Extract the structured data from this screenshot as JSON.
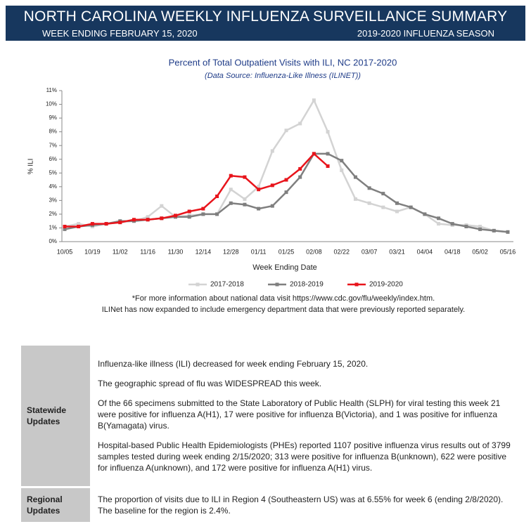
{
  "header": {
    "title": "NORTH CAROLINA WEEKLY INFLUENZA SURVEILLANCE SUMMARY",
    "week": "WEEK ENDING FEBRUARY 15, 2020",
    "season": "2019-2020 INFLUENZA SEASON"
  },
  "chart_data": {
    "type": "line",
    "title": "Percent of Total Outpatient Visits with ILI, NC 2017-2020",
    "subtitle": "(Data Source: Influenza-Like Illness (ILINET))",
    "y_label": "% ILI",
    "x_label": "Week Ending Date",
    "categories": [
      "10/05",
      null,
      "10/19",
      null,
      "11/02",
      null,
      "11/16",
      null,
      "11/30",
      null,
      "12/14",
      null,
      "12/28",
      null,
      "01/11",
      null,
      "01/25",
      null,
      "02/08",
      null,
      "02/22",
      null,
      "03/07",
      null,
      "03/21",
      null,
      "04/04",
      null,
      "04/18",
      null,
      "05/02",
      null,
      "05/16"
    ],
    "ylim": [
      0,
      11
    ],
    "yticks": [
      {
        "value": 0,
        "label": "0%"
      },
      {
        "value": 1,
        "label": "1%"
      },
      {
        "value": 2,
        "label": "2%"
      },
      {
        "value": 3,
        "label": "3%"
      },
      {
        "value": 4,
        "label": "4%"
      },
      {
        "value": 5,
        "label": "5%"
      },
      {
        "value": 6,
        "label": "6%"
      },
      {
        "value": 7,
        "label": "7%"
      },
      {
        "value": 8,
        "label": "8%"
      },
      {
        "value": 9,
        "label": "9%"
      },
      {
        "value": 10,
        "label": "10%"
      },
      {
        "value": 11,
        "label": "11%"
      }
    ],
    "legend": "bottom",
    "series": [
      {
        "name": "2017-2018",
        "color": "#d3d3d3",
        "values": [
          1.1,
          1.3,
          1.1,
          1.3,
          1.4,
          1.5,
          1.8,
          2.6,
          1.8,
          1.9,
          2.0,
          2.0,
          3.8,
          3.1,
          4.0,
          6.6,
          8.1,
          8.6,
          10.3,
          8.0,
          5.2,
          3.1,
          2.8,
          2.5,
          2.2,
          2.5,
          2.0,
          1.3,
          1.2,
          1.2,
          1.1,
          0.8,
          0.7
        ]
      },
      {
        "name": "2018-2019",
        "color": "#7f7f7f",
        "values": [
          0.9,
          1.1,
          1.2,
          1.3,
          1.5,
          1.5,
          1.6,
          1.7,
          1.8,
          1.8,
          2.0,
          2.0,
          2.8,
          2.7,
          2.4,
          2.6,
          3.6,
          4.7,
          6.4,
          6.4,
          5.9,
          4.7,
          3.9,
          3.5,
          2.8,
          2.5,
          2.0,
          1.7,
          1.3,
          1.1,
          0.9,
          0.8,
          0.7
        ]
      },
      {
        "name": "2019-2020",
        "color": "#e8141b",
        "values": [
          1.1,
          1.1,
          1.3,
          1.3,
          1.4,
          1.6,
          1.6,
          1.7,
          1.9,
          2.2,
          2.4,
          3.3,
          4.8,
          4.7,
          3.8,
          4.1,
          4.5,
          5.3,
          6.4,
          5.5,
          null,
          null,
          null,
          null,
          null,
          null,
          null,
          null,
          null,
          null,
          null,
          null,
          null
        ]
      }
    ]
  },
  "notes": [
    "*For more information about national data visit https://www.cdc.gov/flu/weekly/index.htm.",
    "ILINet has now expanded to include emergency department data that were previously reported separately."
  ],
  "table": {
    "rows": [
      {
        "label": "Statewide Updates",
        "paragraphs": [
          "Influenza-like illness (ILI) decreased for week ending February 15, 2020.",
          "The geographic spread of flu was WIDESPREAD this week.",
          "Of the 66 specimens submitted to the State Laboratory of Public Health (SLPH) for viral testing this week 21 were positive for influenza A(H1), 17 were positive for influenza B(Victoria), and 1 was positive for influenza B(Yamagata) virus.",
          "Hospital-based Public Health Epidemiologists (PHEs) reported 1107 positive influenza virus results out of 3799 samples tested during week ending 2/15/2020; 313 were positive for influenza B(unknown), 622 were positive for influenza A(unknown), and 172 were positive for influenza A(H1) virus."
        ]
      },
      {
        "label": "Regional Updates",
        "paragraphs": [
          "The proportion of visits due to ILI in Region 4 (Southeastern US) was at 6.55% for week 6 (ending 2/8/2020). The baseline for the region is 2.4%."
        ]
      }
    ]
  }
}
